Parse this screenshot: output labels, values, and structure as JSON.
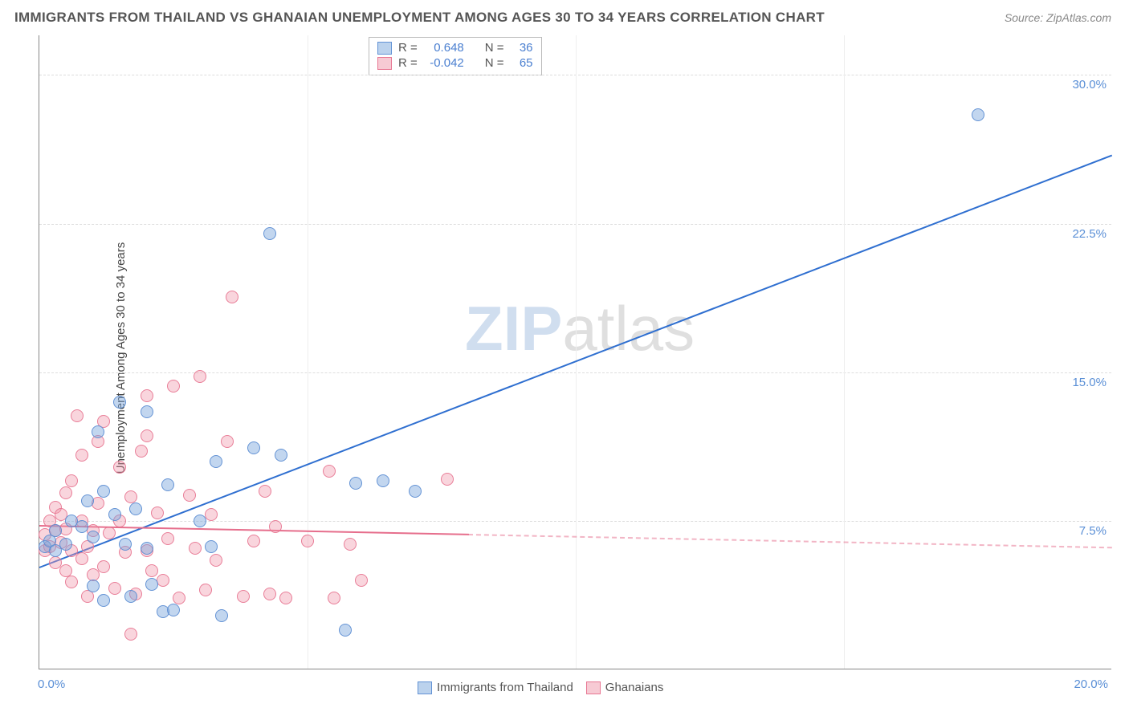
{
  "title": "IMMIGRANTS FROM THAILAND VS GHANAIAN UNEMPLOYMENT AMONG AGES 30 TO 34 YEARS CORRELATION CHART",
  "source": "Source: ZipAtlas.com",
  "y_axis_label": "Unemployment Among Ages 30 to 34 years",
  "watermark_bold": "ZIP",
  "watermark_light": "atlas",
  "chart": {
    "type": "scatter",
    "xlim": [
      0,
      20
    ],
    "ylim": [
      0,
      32
    ],
    "x_ticks": [
      {
        "value": 0,
        "label": "0.0%"
      },
      {
        "value": 20,
        "label": "20.0%"
      }
    ],
    "y_ticks": [
      {
        "value": 7.5,
        "label": "7.5%"
      },
      {
        "value": 15.0,
        "label": "15.0%"
      },
      {
        "value": 22.5,
        "label": "22.5%"
      },
      {
        "value": 30.0,
        "label": "30.0%"
      }
    ],
    "v_gridlines": [
      5,
      10,
      15
    ],
    "background_color": "#ffffff",
    "grid_color": "#dddddd",
    "marker_size": 16,
    "series": [
      {
        "name": "Immigrants from Thailand",
        "color_fill": "rgba(120,165,220,0.45)",
        "color_stroke": "#5a8cd2",
        "class": "blue",
        "stats": {
          "R": "0.648",
          "N": "36"
        },
        "trend": {
          "x1": 0,
          "y1": 5.2,
          "x2": 20,
          "y2": 26.0,
          "color": "#2f6fd0",
          "width": 2.5,
          "dash": false
        },
        "points": [
          [
            0.1,
            6.2
          ],
          [
            0.2,
            6.5
          ],
          [
            0.3,
            6.0
          ],
          [
            0.3,
            7.0
          ],
          [
            0.5,
            6.3
          ],
          [
            0.6,
            7.5
          ],
          [
            0.8,
            7.2
          ],
          [
            0.9,
            8.5
          ],
          [
            1.0,
            6.7
          ],
          [
            1.0,
            4.2
          ],
          [
            1.1,
            12.0
          ],
          [
            1.2,
            9.0
          ],
          [
            1.2,
            3.5
          ],
          [
            1.4,
            7.8
          ],
          [
            1.5,
            13.5
          ],
          [
            1.6,
            6.3
          ],
          [
            1.7,
            3.7
          ],
          [
            1.8,
            8.1
          ],
          [
            2.0,
            13.0
          ],
          [
            2.0,
            6.1
          ],
          [
            2.1,
            4.3
          ],
          [
            2.3,
            2.9
          ],
          [
            2.4,
            9.3
          ],
          [
            2.5,
            3.0
          ],
          [
            3.0,
            7.5
          ],
          [
            3.2,
            6.2
          ],
          [
            3.3,
            10.5
          ],
          [
            3.4,
            2.7
          ],
          [
            4.0,
            11.2
          ],
          [
            4.3,
            22.0
          ],
          [
            4.5,
            10.8
          ],
          [
            5.7,
            2.0
          ],
          [
            5.9,
            9.4
          ],
          [
            6.4,
            9.5
          ],
          [
            7.0,
            9.0
          ],
          [
            17.5,
            28.0
          ]
        ]
      },
      {
        "name": "Ghanaians",
        "color_fill": "rgba(240,150,170,0.4)",
        "color_stroke": "#e66e8c",
        "class": "pink",
        "stats": {
          "R": "-0.042",
          "N": "65"
        },
        "trend": {
          "x1": 0,
          "y1": 7.3,
          "x2": 20,
          "y2": 6.2,
          "color": "#e66e8c",
          "width": 2,
          "dash_after_x": 8
        },
        "points": [
          [
            0.1,
            6.0
          ],
          [
            0.1,
            6.8
          ],
          [
            0.2,
            6.2
          ],
          [
            0.2,
            7.5
          ],
          [
            0.3,
            5.4
          ],
          [
            0.3,
            7.0
          ],
          [
            0.3,
            8.2
          ],
          [
            0.4,
            6.4
          ],
          [
            0.4,
            7.8
          ],
          [
            0.5,
            5.0
          ],
          [
            0.5,
            7.1
          ],
          [
            0.5,
            8.9
          ],
          [
            0.6,
            4.4
          ],
          [
            0.6,
            6.0
          ],
          [
            0.6,
            9.5
          ],
          [
            0.7,
            12.8
          ],
          [
            0.8,
            5.6
          ],
          [
            0.8,
            7.5
          ],
          [
            0.8,
            10.8
          ],
          [
            0.9,
            3.7
          ],
          [
            0.9,
            6.2
          ],
          [
            1.0,
            7.0
          ],
          [
            1.0,
            4.8
          ],
          [
            1.1,
            8.4
          ],
          [
            1.1,
            11.5
          ],
          [
            1.2,
            12.5
          ],
          [
            1.2,
            5.2
          ],
          [
            1.3,
            6.9
          ],
          [
            1.4,
            4.1
          ],
          [
            1.5,
            10.2
          ],
          [
            1.5,
            7.5
          ],
          [
            1.6,
            5.9
          ],
          [
            1.7,
            8.7
          ],
          [
            1.8,
            3.8
          ],
          [
            1.9,
            11.0
          ],
          [
            2.0,
            6.0
          ],
          [
            2.0,
            13.8
          ],
          [
            2.1,
            5.0
          ],
          [
            2.2,
            7.9
          ],
          [
            2.3,
            4.5
          ],
          [
            2.4,
            6.6
          ],
          [
            2.5,
            14.3
          ],
          [
            2.6,
            3.6
          ],
          [
            2.8,
            8.8
          ],
          [
            2.9,
            6.1
          ],
          [
            3.0,
            14.8
          ],
          [
            3.1,
            4.0
          ],
          [
            3.2,
            7.8
          ],
          [
            3.3,
            5.5
          ],
          [
            3.5,
            11.5
          ],
          [
            3.6,
            18.8
          ],
          [
            3.8,
            3.7
          ],
          [
            4.0,
            6.5
          ],
          [
            4.2,
            9.0
          ],
          [
            4.3,
            3.8
          ],
          [
            4.4,
            7.2
          ],
          [
            4.6,
            3.6
          ],
          [
            5.0,
            6.5
          ],
          [
            5.4,
            10.0
          ],
          [
            5.5,
            3.6
          ],
          [
            5.8,
            6.3
          ],
          [
            6.0,
            4.5
          ],
          [
            7.6,
            9.6
          ],
          [
            1.7,
            1.8
          ],
          [
            2.0,
            11.8
          ]
        ]
      }
    ]
  },
  "stats_box": {
    "rows": [
      {
        "class": "blue",
        "R_label": "R =",
        "R": "0.648",
        "N_label": "N =",
        "N": "36"
      },
      {
        "class": "pink",
        "R_label": "R =",
        "R": "-0.042",
        "N_label": "N =",
        "N": "65"
      }
    ]
  },
  "bottom_legend": {
    "items": [
      {
        "class": "blue",
        "label": "Immigrants from Thailand"
      },
      {
        "class": "pink",
        "label": "Ghanaians"
      }
    ]
  }
}
